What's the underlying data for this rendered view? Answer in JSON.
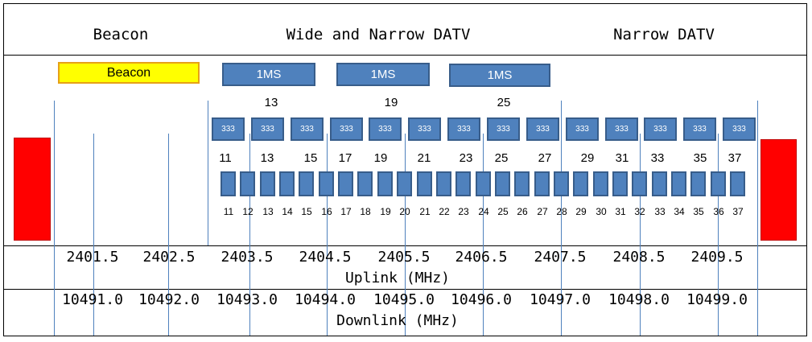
{
  "headers": {
    "beacon": "Beacon",
    "wide_narrow": "Wide and Narrow DATV",
    "narrow": "Narrow DATV"
  },
  "beacon_box": {
    "label": "Beacon"
  },
  "ms_boxes": [
    {
      "label": "1MS"
    },
    {
      "label": "1MS"
    },
    {
      "label": "1MS"
    }
  ],
  "ms_channel_numbers": [
    "13",
    "19",
    "25"
  ],
  "ks333_label": "333",
  "ks333_count": 14,
  "ks333_channel_numbers": [
    "11",
    "13",
    "15",
    "17",
    "19",
    "21",
    "23",
    "25",
    "27",
    "29",
    "31",
    "33",
    "35",
    "37"
  ],
  "ks125_channel_numbers": [
    "11",
    "12",
    "13",
    "14",
    "15",
    "16",
    "17",
    "18",
    "19",
    "20",
    "21",
    "22",
    "23",
    "24",
    "25",
    "26",
    "27",
    "28",
    "29",
    "30",
    "31",
    "32",
    "33",
    "34",
    "35",
    "36",
    "37"
  ],
  "uplink": {
    "frequencies": [
      "2401.5",
      "2402.5",
      "2403.5",
      "2404.5",
      "2405.5",
      "2406.5",
      "2407.5",
      "2408.5",
      "2409.5"
    ],
    "title": "Uplink (MHz)"
  },
  "downlink": {
    "frequencies": [
      "10491.0",
      "10492.0",
      "10493.0",
      "10494.0",
      "10495.0",
      "10496.0",
      "10497.0",
      "10498.0",
      "10499.0"
    ],
    "title": "Downlink (MHz)"
  },
  "colors": {
    "channel_fill": "#4f81bd",
    "channel_border": "#385d8a",
    "beacon_fill": "#ffff00",
    "beacon_border": "#e6a117",
    "band_edge": "#ff0000",
    "guide_line": "#4f81bd"
  }
}
